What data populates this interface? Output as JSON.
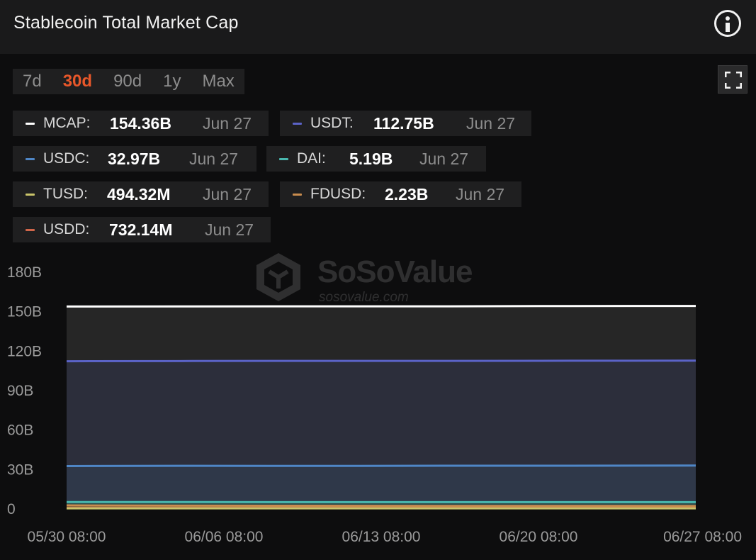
{
  "header": {
    "title": "Stablecoin Total Market Cap"
  },
  "icons": {
    "info": "info-icon",
    "fullscreen": "fullscreen-icon"
  },
  "range_tabs": [
    {
      "label": "7d",
      "active": false
    },
    {
      "label": "30d",
      "active": true
    },
    {
      "label": "90d",
      "active": false
    },
    {
      "label": "1y",
      "active": false
    },
    {
      "label": "Max",
      "active": false
    }
  ],
  "legend": [
    {
      "name": "MCAP:",
      "value": "154.36B",
      "date": "Jun 27",
      "color": "#ffffff"
    },
    {
      "name": "USDT:",
      "value": "112.75B",
      "date": "Jun 27",
      "color": "#5b63c7"
    },
    {
      "name": "USDC:",
      "value": "32.97B",
      "date": "Jun 27",
      "color": "#4f86c6"
    },
    {
      "name": "DAI:",
      "value": "5.19B",
      "date": "Jun 27",
      "color": "#49b7ae"
    },
    {
      "name": "TUSD:",
      "value": "494.32M",
      "date": "Jun 27",
      "color": "#c9c46a"
    },
    {
      "name": "FDUSD:",
      "value": "2.23B",
      "date": "Jun 27",
      "color": "#c98c4e"
    },
    {
      "name": "USDD:",
      "value": "732.14M",
      "date": "Jun 27",
      "color": "#d0664a"
    }
  ],
  "watermark": {
    "brand": "SoSoValue",
    "url": "sosovalue.com"
  },
  "colors": {
    "accent": "#e8572a",
    "background": "#0d0d0e",
    "panel": "#1f1f20"
  },
  "chart_data": {
    "type": "area",
    "title": "Stablecoin Total Market Cap",
    "xlabel": "",
    "ylabel": "",
    "ylim": [
      0,
      180
    ],
    "y_unit": "B",
    "y_ticks": [
      "0",
      "30B",
      "60B",
      "90B",
      "120B",
      "150B",
      "180B"
    ],
    "x_ticks": [
      "05/30 08:00",
      "06/06 08:00",
      "06/13 08:00",
      "06/20 08:00",
      "06/27 08:00"
    ],
    "grid": false,
    "series": [
      {
        "name": "MCAP",
        "color": "#ffffff",
        "values": [
          153.9,
          154.0,
          154.1,
          154.1,
          154.3,
          154.36
        ]
      },
      {
        "name": "USDT",
        "color": "#5b63c7",
        "values": [
          112.3,
          112.5,
          112.6,
          112.6,
          112.7,
          112.75
        ]
      },
      {
        "name": "USDC",
        "color": "#4f86c6",
        "values": [
          32.6,
          32.8,
          32.7,
          32.9,
          32.9,
          32.97
        ]
      },
      {
        "name": "DAI",
        "color": "#49b7ae",
        "values": [
          5.3,
          5.3,
          5.2,
          5.2,
          5.2,
          5.19
        ]
      },
      {
        "name": "FDUSD",
        "color": "#c98c4e",
        "values": [
          2.7,
          2.5,
          2.4,
          2.3,
          2.3,
          2.23
        ]
      },
      {
        "name": "USDD",
        "color": "#d0664a",
        "values": [
          0.73,
          0.73,
          0.73,
          0.73,
          0.73,
          0.73
        ]
      },
      {
        "name": "TUSD",
        "color": "#c9c46a",
        "values": [
          0.49,
          0.49,
          0.49,
          0.49,
          0.49,
          0.49
        ]
      }
    ]
  }
}
